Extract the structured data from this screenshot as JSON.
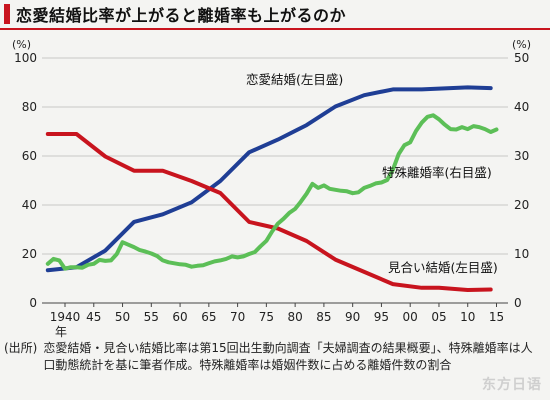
{
  "header": {
    "title": "恋愛結婚比率が上がると離婚率も上がるのか"
  },
  "source": {
    "label": "(出所)",
    "text": "恋愛結婚・見合い結婚比率は第15回出生動向調査「夫婦調査の結果概要」、特殊離婚率は人口動態統計を基に筆者作成。特殊離婚率は婚姻件数に占める離婚件数の割合"
  },
  "watermark": "东方日语",
  "colors": {
    "love": "#1f3e95",
    "arranged": "#c8141e",
    "divorce": "#5cbf57",
    "title_mark": "#c8141e"
  },
  "chart_data": {
    "type": "line",
    "title": "恋愛結婚比率が上がると離婚率も上がるのか",
    "left_axis": {
      "unit": "(%)",
      "ylim": [
        0,
        100
      ],
      "ticks": [
        "0",
        "20",
        "40",
        "60",
        "80",
        "100"
      ]
    },
    "right_axis": {
      "unit": "(%)",
      "ylim": [
        0,
        50
      ],
      "ticks": [
        "0",
        "10",
        "20",
        "30",
        "40",
        "50"
      ]
    },
    "xlim": [
      1936,
      2017
    ],
    "x_ticks": [
      {
        "x": 1940,
        "label": "1940"
      },
      {
        "x": 1945,
        "label": "45"
      },
      {
        "x": 1950,
        "label": "50"
      },
      {
        "x": 1955,
        "label": "55"
      },
      {
        "x": 1960,
        "label": "60"
      },
      {
        "x": 1965,
        "label": "65"
      },
      {
        "x": 1970,
        "label": "70"
      },
      {
        "x": 1975,
        "label": "75"
      },
      {
        "x": 1980,
        "label": "80"
      },
      {
        "x": 1985,
        "label": "85"
      },
      {
        "x": 1990,
        "label": "90"
      },
      {
        "x": 1995,
        "label": "95"
      },
      {
        "x": 2000,
        "label": "00"
      },
      {
        "x": 2005,
        "label": "05"
      },
      {
        "x": 2010,
        "label": "10"
      },
      {
        "x": 2015,
        "label": "15"
      }
    ],
    "x_unit_label": "年",
    "grid": "horizontal",
    "series": [
      {
        "name": "恋愛結婚(左目盛)",
        "axis": "left",
        "color": "#1f3e95",
        "points": [
          [
            1937,
            13.4
          ],
          [
            1942,
            14.6
          ],
          [
            1947,
            21.4
          ],
          [
            1952,
            33.1
          ],
          [
            1957,
            36.2
          ],
          [
            1962,
            41.1
          ],
          [
            1967,
            49.8
          ],
          [
            1972,
            61.5
          ],
          [
            1977,
            66.7
          ],
          [
            1982,
            72.6
          ],
          [
            1987,
            80.2
          ],
          [
            1992,
            84.8
          ],
          [
            1997,
            87.2
          ],
          [
            2002,
            87.2
          ],
          [
            2005,
            87.5
          ],
          [
            2010,
            88.0
          ],
          [
            2014,
            87.7
          ]
        ]
      },
      {
        "name": "見合い結婚(左目盛)",
        "axis": "left",
        "color": "#c8141e",
        "points": [
          [
            1937,
            69.0
          ],
          [
            1942,
            69.0
          ],
          [
            1947,
            59.8
          ],
          [
            1952,
            54.0
          ],
          [
            1957,
            54.0
          ],
          [
            1962,
            49.8
          ],
          [
            1967,
            44.9
          ],
          [
            1972,
            33.1
          ],
          [
            1977,
            30.4
          ],
          [
            1982,
            25.3
          ],
          [
            1987,
            17.7
          ],
          [
            1992,
            12.7
          ],
          [
            1997,
            7.7
          ],
          [
            2002,
            6.2
          ],
          [
            2005,
            6.2
          ],
          [
            2010,
            5.3
          ],
          [
            2014,
            5.5
          ]
        ]
      },
      {
        "name": "特殊離婚率(右目盛)",
        "axis": "right",
        "color": "#5cbf57",
        "points": [
          [
            1937,
            8.0
          ],
          [
            1938,
            9.0
          ],
          [
            1939,
            8.7
          ],
          [
            1940,
            7.0
          ],
          [
            1941,
            7.3
          ],
          [
            1942,
            7.3
          ],
          [
            1943,
            7.2
          ],
          [
            1944,
            7.8
          ],
          [
            1945,
            8.0
          ],
          [
            1946,
            8.8
          ],
          [
            1947,
            8.6
          ],
          [
            1948,
            8.7
          ],
          [
            1949,
            10.0
          ],
          [
            1950,
            12.4
          ],
          [
            1951,
            11.9
          ],
          [
            1952,
            11.4
          ],
          [
            1953,
            10.8
          ],
          [
            1954,
            10.5
          ],
          [
            1955,
            10.1
          ],
          [
            1956,
            9.6
          ],
          [
            1957,
            8.7
          ],
          [
            1958,
            8.3
          ],
          [
            1959,
            8.1
          ],
          [
            1960,
            7.9
          ],
          [
            1961,
            7.8
          ],
          [
            1962,
            7.4
          ],
          [
            1963,
            7.6
          ],
          [
            1964,
            7.7
          ],
          [
            1965,
            8.1
          ],
          [
            1966,
            8.5
          ],
          [
            1967,
            8.7
          ],
          [
            1968,
            9.0
          ],
          [
            1969,
            9.5
          ],
          [
            1970,
            9.3
          ],
          [
            1971,
            9.5
          ],
          [
            1972,
            10.0
          ],
          [
            1973,
            10.4
          ],
          [
            1974,
            11.6
          ],
          [
            1975,
            12.7
          ],
          [
            1976,
            14.6
          ],
          [
            1977,
            16.2
          ],
          [
            1978,
            17.2
          ],
          [
            1979,
            18.4
          ],
          [
            1980,
            19.2
          ],
          [
            1981,
            20.7
          ],
          [
            1982,
            22.3
          ],
          [
            1983,
            24.3
          ],
          [
            1984,
            23.5
          ],
          [
            1985,
            24.0
          ],
          [
            1986,
            23.3
          ],
          [
            1987,
            23.1
          ],
          [
            1988,
            22.9
          ],
          [
            1989,
            22.8
          ],
          [
            1990,
            22.4
          ],
          [
            1991,
            22.6
          ],
          [
            1992,
            23.5
          ],
          [
            1993,
            23.9
          ],
          [
            1994,
            24.4
          ],
          [
            1995,
            24.6
          ],
          [
            1996,
            25.1
          ],
          [
            1997,
            27.2
          ],
          [
            1998,
            30.4
          ],
          [
            1999,
            32.2
          ],
          [
            2000,
            32.8
          ],
          [
            2001,
            35.1
          ],
          [
            2002,
            36.8
          ],
          [
            2003,
            38.0
          ],
          [
            2004,
            38.3
          ],
          [
            2005,
            37.5
          ],
          [
            2006,
            36.4
          ],
          [
            2007,
            35.5
          ],
          [
            2008,
            35.4
          ],
          [
            2009,
            35.9
          ],
          [
            2010,
            35.5
          ],
          [
            2011,
            36.1
          ],
          [
            2012,
            35.9
          ],
          [
            2013,
            35.5
          ],
          [
            2014,
            34.9
          ],
          [
            2015,
            35.4
          ]
        ]
      }
    ]
  }
}
